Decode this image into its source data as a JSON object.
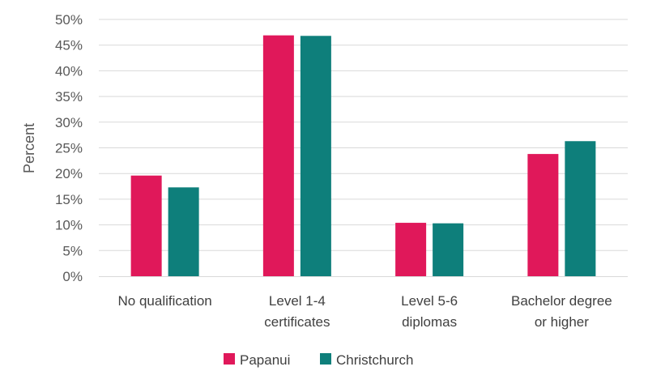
{
  "chart_data": {
    "type": "bar",
    "title": "",
    "xlabel": "",
    "ylabel": "Percent",
    "ylim": [
      0,
      50
    ],
    "yticks": [
      "0%",
      "5%",
      "10%",
      "15%",
      "20%",
      "25%",
      "30%",
      "35%",
      "40%",
      "45%",
      "50%"
    ],
    "categories": [
      [
        "No qualification"
      ],
      [
        "Level 1-4",
        "certificates"
      ],
      [
        "Level 5-6",
        "diplomas"
      ],
      [
        "Bachelor degree",
        "or higher"
      ]
    ],
    "series": [
      {
        "name": "Papanui",
        "color": "#e0185a",
        "values": [
          19.6,
          46.9,
          10.4,
          23.8
        ]
      },
      {
        "name": "Christchurch",
        "color": "#0e7f7b",
        "values": [
          17.3,
          46.8,
          10.3,
          26.3
        ]
      }
    ],
    "grid": true,
    "legend_position": "bottom"
  }
}
